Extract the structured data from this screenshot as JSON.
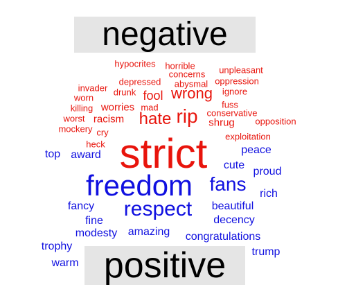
{
  "colors": {
    "negative": "#e8140c",
    "positive": "#1010e0"
  },
  "labels": {
    "negative": "negative",
    "positive": "positive"
  },
  "negative_words": [
    "hypocrites",
    "horrible",
    "concerns",
    "unpleasant",
    "depressed",
    "abysmal",
    "oppression",
    "invader",
    "drunk",
    "fool",
    "wrong",
    "ignore",
    "worn",
    "mad",
    "fuss",
    "killing",
    "worries",
    "hate",
    "rip",
    "conservative",
    "worst",
    "racism",
    "shrug",
    "opposition",
    "mockery",
    "cry",
    "exploitation",
    "heck",
    "strict"
  ],
  "positive_words": [
    "top",
    "award",
    "peace",
    "freedom",
    "fans",
    "cute",
    "proud",
    "rich",
    "fancy",
    "respect",
    "beautiful",
    "fine",
    "decency",
    "modesty",
    "amazing",
    "congratulations",
    "trophy",
    "warm",
    "trump"
  ]
}
